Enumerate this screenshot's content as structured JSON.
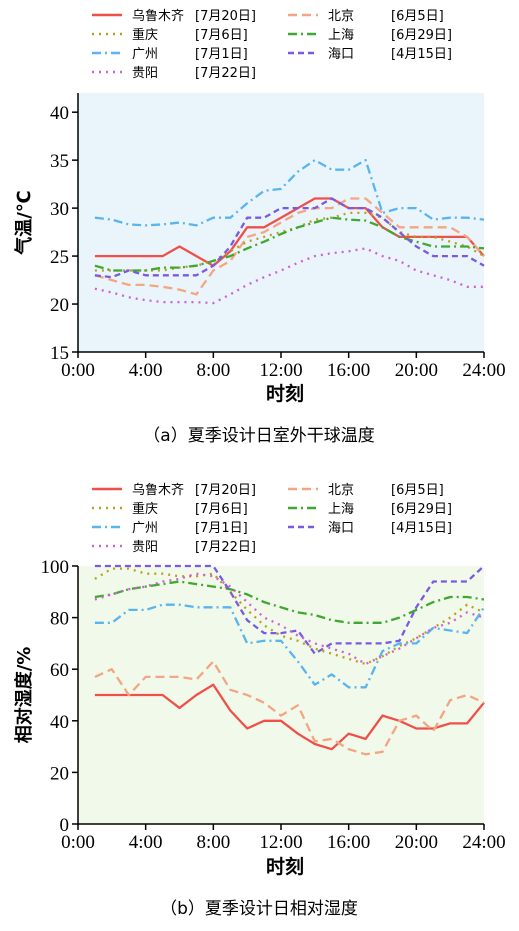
{
  "chart_data": [
    {
      "type": "line",
      "caption": "（a）夏季设计日室外干球温度",
      "xlabel": "时刻",
      "ylabel": "气温/℃",
      "xlim": [
        0,
        24
      ],
      "ylim": [
        15,
        42
      ],
      "x_ticks": [
        0,
        4,
        8,
        12,
        16,
        20,
        24
      ],
      "x_tick_labels": [
        "0:00",
        "4:00",
        "8:00",
        "12:00",
        "16:00",
        "20:00",
        "24:00"
      ],
      "y_ticks": [
        15,
        20,
        25,
        30,
        35,
        40
      ],
      "y_tick_labels": [
        "15",
        "20",
        "25",
        "30",
        "35",
        "40"
      ],
      "grid": false,
      "background": "#eaf4fb",
      "legend_position": "top",
      "x": [
        1,
        2,
        3,
        4,
        5,
        6,
        7,
        8,
        9,
        10,
        11,
        12,
        13,
        14,
        15,
        16,
        17,
        18,
        19,
        20,
        21,
        22,
        23,
        24
      ],
      "series": [
        {
          "name": "乌鲁木齐",
          "date": "[7月20日]",
          "color": "#f0504a",
          "dash": "solid",
          "values": [
            25,
            25,
            25,
            25,
            25,
            26,
            25,
            24,
            25.5,
            28,
            28,
            29,
            30,
            31,
            31,
            30,
            30,
            28,
            27,
            27,
            27,
            27,
            27,
            25
          ]
        },
        {
          "name": "北京",
          "date": "[6月5日]",
          "color": "#f4a582",
          "dash": "longdash",
          "values": [
            23,
            22.5,
            22,
            22,
            21.8,
            21.5,
            21,
            23.5,
            24.5,
            27,
            27.5,
            28.5,
            29.5,
            30,
            30,
            31,
            31,
            29.5,
            28,
            28,
            28,
            28,
            27,
            25
          ]
        },
        {
          "name": "重庆",
          "date": "[7月6日]",
          "color": "#b8a020",
          "dash": "dot",
          "values": [
            23.5,
            23.5,
            23.5,
            23.5,
            23.5,
            23.8,
            24,
            24.5,
            25.5,
            26.5,
            27,
            27.5,
            28,
            28.8,
            29,
            29.5,
            29.5,
            29,
            27.5,
            27,
            27,
            26.5,
            26,
            25
          ]
        },
        {
          "name": "上海",
          "date": "[6月29日]",
          "color": "#3fa830",
          "dash": "dashdot",
          "values": [
            24,
            23.5,
            23.5,
            23.5,
            23.8,
            23.8,
            24,
            24.5,
            25,
            25.8,
            26.5,
            27.3,
            28,
            28.5,
            29,
            28.8,
            28.7,
            28,
            27,
            26.5,
            26,
            26,
            26,
            25.8
          ]
        },
        {
          "name": "广州",
          "date": "[7月1日]",
          "color": "#5ab4f0",
          "dash": "dashdot",
          "values": [
            29,
            28.8,
            28.3,
            28.2,
            28.3,
            28.5,
            28.2,
            29,
            29,
            30.5,
            31.8,
            32,
            33.8,
            35,
            34,
            34,
            35,
            29.5,
            30,
            30,
            28.8,
            29,
            29,
            28.8
          ]
        },
        {
          "name": "海口",
          "date": "[4月15日]",
          "color": "#7a5ae0",
          "dash": "dash",
          "values": [
            23,
            22.8,
            23.5,
            23,
            23,
            23,
            23,
            24,
            26,
            29,
            29,
            30,
            30,
            30,
            31,
            30,
            30,
            29,
            27.5,
            26,
            25,
            25,
            25,
            24
          ]
        },
        {
          "name": "贵阳",
          "date": "[7月22日]",
          "color": "#d060d8",
          "dash": "dot",
          "values": [
            21.6,
            21.2,
            20.7,
            20.4,
            20.2,
            20.2,
            20.2,
            20.1,
            21,
            22,
            22.8,
            23.5,
            24.3,
            25,
            25.3,
            25.5,
            25.8,
            25,
            24.5,
            23.5,
            23,
            22.5,
            21.8,
            21.8
          ]
        }
      ]
    },
    {
      "type": "line",
      "caption": "（b）夏季设计日相对湿度",
      "xlabel": "时刻",
      "ylabel": "相对湿度/%",
      "xlim": [
        0,
        24
      ],
      "ylim": [
        0,
        100
      ],
      "x_ticks": [
        0,
        4,
        8,
        12,
        16,
        20,
        24
      ],
      "x_tick_labels": [
        "0:00",
        "4:00",
        "8:00",
        "12:00",
        "16:00",
        "20:00",
        "24:00"
      ],
      "y_ticks": [
        0,
        20,
        40,
        60,
        80,
        100
      ],
      "y_tick_labels": [
        "0",
        "20",
        "40",
        "60",
        "80",
        "100"
      ],
      "grid": false,
      "background": "#f1f9ea",
      "legend_position": "top",
      "x": [
        1,
        2,
        3,
        4,
        5,
        6,
        7,
        8,
        9,
        10,
        11,
        12,
        13,
        14,
        15,
        16,
        17,
        18,
        19,
        20,
        21,
        22,
        23,
        24
      ],
      "series": [
        {
          "name": "乌鲁木齐",
          "date": "[7月20日]",
          "color": "#f0504a",
          "dash": "solid",
          "values": [
            50,
            50,
            50,
            50,
            50,
            45,
            50,
            54,
            44,
            37,
            40,
            40,
            35,
            31,
            29,
            35,
            33,
            42,
            40,
            37,
            37,
            39,
            39,
            47
          ]
        },
        {
          "name": "北京",
          "date": "[6月5日]",
          "color": "#f4a582",
          "dash": "longdash",
          "values": [
            57,
            60,
            50,
            57,
            57,
            57,
            56,
            63,
            52,
            50,
            47,
            42,
            46,
            32,
            33,
            29,
            27,
            28,
            40,
            42,
            36,
            48,
            50,
            47
          ]
        },
        {
          "name": "重庆",
          "date": "[7月6日]",
          "color": "#b8a020",
          "dash": "dot",
          "values": [
            95,
            99,
            99,
            97,
            97,
            96,
            96,
            97,
            90,
            83,
            77,
            73,
            71,
            68,
            66,
            64,
            62,
            65,
            69,
            72,
            76,
            80,
            85,
            82
          ]
        },
        {
          "name": "上海",
          "date": "[6月29日]",
          "color": "#3fa830",
          "dash": "dashdot",
          "values": [
            88,
            89,
            91,
            92,
            93,
            94,
            93,
            92,
            91,
            89,
            86,
            84,
            82,
            81,
            79,
            78,
            78,
            78,
            80,
            83,
            86,
            88,
            88,
            87
          ]
        },
        {
          "name": "广州",
          "date": "[7月1日]",
          "color": "#5ab4f0",
          "dash": "dashdot",
          "values": [
            78,
            78,
            83,
            83,
            85,
            85,
            84,
            84,
            84,
            70,
            71,
            71,
            63,
            54,
            58,
            53,
            53,
            67,
            70,
            70,
            76,
            75,
            74,
            84
          ]
        },
        {
          "name": "海口",
          "date": "[4月15日]",
          "color": "#7a5ae0",
          "dash": "dash",
          "values": [
            100,
            100,
            100,
            100,
            100,
            100,
            100,
            100,
            90,
            79,
            74,
            74,
            75,
            66,
            70,
            70,
            70,
            70,
            71,
            84,
            94,
            94,
            94,
            100
          ]
        },
        {
          "name": "贵阳",
          "date": "[7月22日]",
          "color": "#d060d8",
          "dash": "dot",
          "values": [
            87,
            89,
            91,
            92,
            94,
            95,
            97,
            96,
            92,
            86,
            80,
            77,
            73,
            70,
            68,
            66,
            62,
            65,
            68,
            72,
            76,
            78,
            82,
            80
          ]
        }
      ]
    }
  ]
}
